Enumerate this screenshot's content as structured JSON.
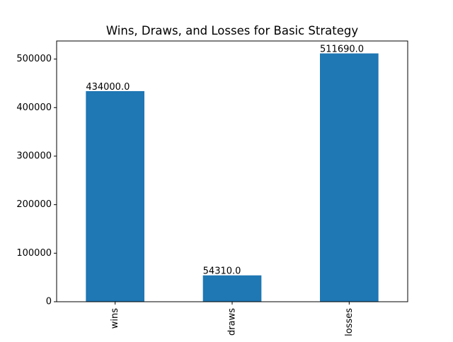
{
  "chart_data": {
    "type": "bar",
    "title": "Wins, Draws, and Losses for Basic Strategy",
    "xlabel": "",
    "ylabel": "",
    "categories": [
      "wins",
      "draws",
      "losses"
    ],
    "values": [
      434000,
      54310,
      511690
    ],
    "value_labels": [
      "434000.0",
      "54310.0",
      "511690.0"
    ],
    "ylim": [
      0,
      537274.5
    ],
    "yticks": [
      0,
      100000,
      200000,
      300000,
      400000,
      500000
    ],
    "ytick_labels": [
      "0",
      "100000",
      "200000",
      "300000",
      "400000",
      "500000"
    ],
    "grid": false,
    "legend": "none",
    "bar_color": "#1f77b4"
  }
}
